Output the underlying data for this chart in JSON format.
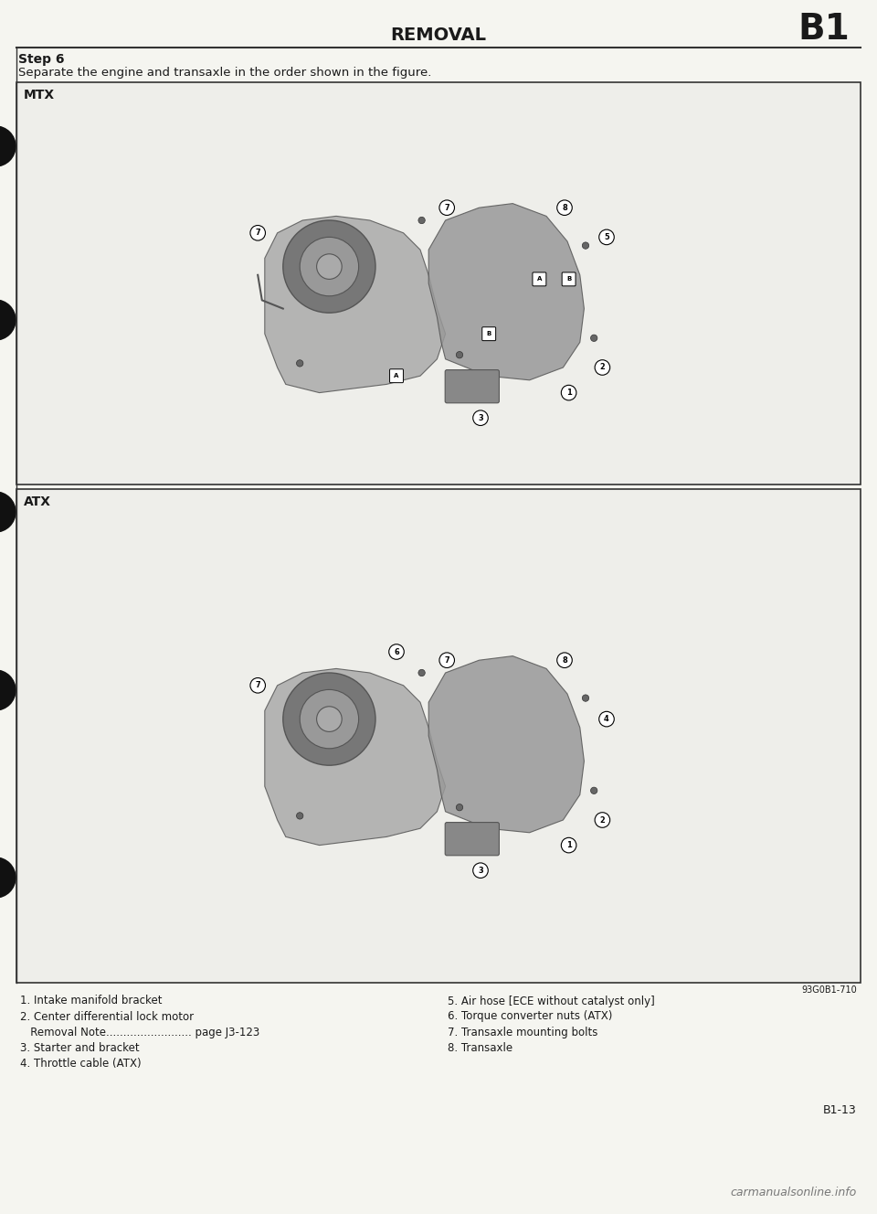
{
  "title_center": "REMOVAL",
  "title_right": "B1",
  "step_title": "Step 6",
  "step_desc": "Separate the engine and transaxle in the order shown in the figure.",
  "mtx_label": "MTX",
  "atx_label": "ATX",
  "figure_code": "93G0B1-710",
  "page_ref": "B1-13",
  "watermark": "carmanualsonline.info",
  "legend_items_left": [
    "1. Intake manifold bracket",
    "2. Center differential lock motor",
    "   Removal Note......................... page J3-123",
    "3. Starter and bracket",
    "4. Throttle cable (ATX)"
  ],
  "legend_items_right": [
    "5. Air hose [ECE without catalyst only]",
    "6. Torque converter nuts (ATX)",
    "7. Transaxle mounting bolts",
    "8. Transaxle"
  ],
  "bg_color": "#f5f5f0",
  "panel_bg": "#ffffff",
  "text_color": "#1a1a1a",
  "border_color": "#333333",
  "line_color": "#444444"
}
